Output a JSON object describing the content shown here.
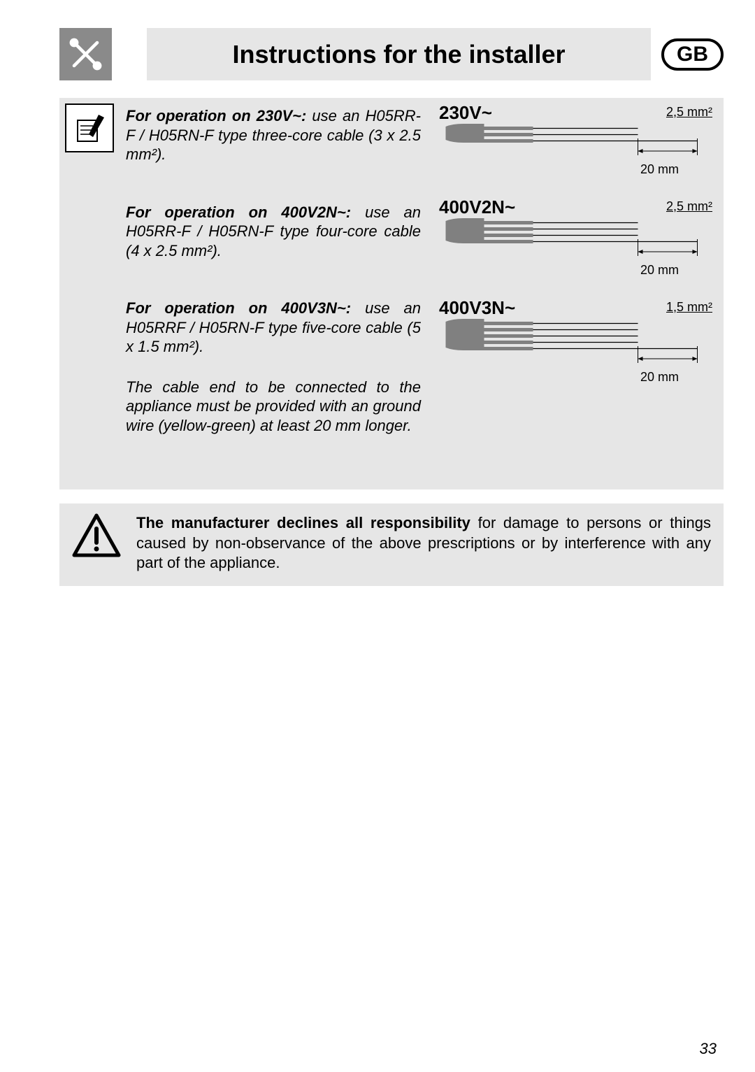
{
  "header": {
    "title": "Instructions for the installer",
    "badge": "GB"
  },
  "instructions": {
    "p1_bold": "For operation on 230V~:",
    "p1_rest": " use an H05RR-F / H05RN-F type three-core cable (3 x 2.5 mm²).",
    "p2_bold": "For operation on 400V2N~:",
    "p2_rest": " use an H05RR-F / H05RN-F type four-core cable (4 x 2.5 mm²).",
    "p3_bold": "For operation on 400V3N~:",
    "p3_rest": " use an H05RRF / H05RN-F type five-core cable (5 x 1.5 mm²).",
    "p4": "The cable end to be connected to the appliance must be provided with an ground wire (yellow-green) at least 20 mm longer."
  },
  "diagrams": [
    {
      "voltage": "230V~",
      "cross_section": "2,5 mm²",
      "length": "20 mm",
      "wires": 3
    },
    {
      "voltage": "400V2N~",
      "cross_section": "2,5 mm²",
      "length": "20 mm",
      "wires": 4
    },
    {
      "voltage": "400V3N~",
      "cross_section": "1,5 mm²",
      "length": "20 mm",
      "wires": 5
    }
  ],
  "warning": {
    "bold": "The manufacturer declines all responsibility",
    "rest": " for damage to persons or things caused by non-observance of the above prescriptions or by interference with any part of the appliance."
  },
  "page_number": "33",
  "colors": {
    "bg_grey": "#e6e6e6",
    "icon_grey": "#8a8a8a",
    "cable_grey": "#808080"
  }
}
